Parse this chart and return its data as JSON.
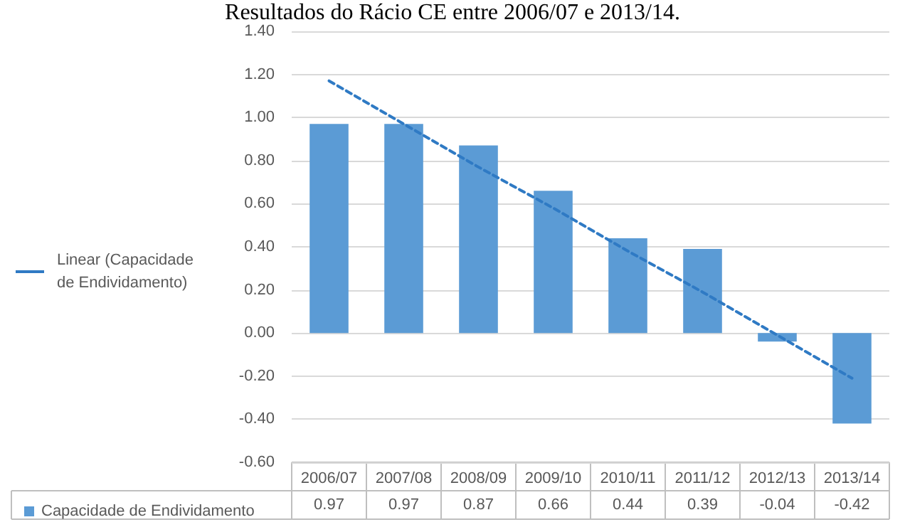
{
  "chart_data": {
    "type": "bar",
    "title": "Resultados do Rácio CE entre 2006/07 e 2013/14.",
    "categories": [
      "2006/07",
      "2007/08",
      "2008/09",
      "2009/10",
      "2010/11",
      "2011/12",
      "2012/13",
      "2013/14"
    ],
    "series": [
      {
        "name": "Capacidade de Endividamento",
        "color": "#5b9bd5",
        "values": [
          0.97,
          0.97,
          0.87,
          0.66,
          0.44,
          0.39,
          -0.04,
          -0.42
        ],
        "value_labels": [
          "0.97",
          "0.97",
          "0.87",
          "0.66",
          "0.44",
          "0.39",
          "-0.04",
          "-0.42"
        ]
      },
      {
        "name": "Linear (Capacidade de Endividamento)",
        "type": "line",
        "color": "#2f7ac4",
        "line_style": "dashed",
        "marker": "none",
        "values": [
          1.17,
          0.97,
          0.77,
          0.58,
          0.38,
          0.19,
          -0.01,
          -0.21
        ]
      }
    ],
    "ylim": [
      -0.6,
      1.4
    ],
    "yticks": [
      {
        "value": -0.6,
        "label": "-0.60"
      },
      {
        "value": -0.4,
        "label": "-0.40"
      },
      {
        "value": -0.2,
        "label": "-0.20"
      },
      {
        "value": 0,
        "label": "0.00"
      },
      {
        "value": 0.2,
        "label": "0.20"
      },
      {
        "value": 0.4,
        "label": "0.40"
      },
      {
        "value": 0.6,
        "label": "0.60"
      },
      {
        "value": 0.8,
        "label": "0.80"
      },
      {
        "value": 1,
        "label": "1.00"
      },
      {
        "value": 1.2,
        "label": "1.20"
      },
      {
        "value": 1.4,
        "label": "1.40"
      }
    ],
    "grid": "y",
    "legend": "left"
  }
}
